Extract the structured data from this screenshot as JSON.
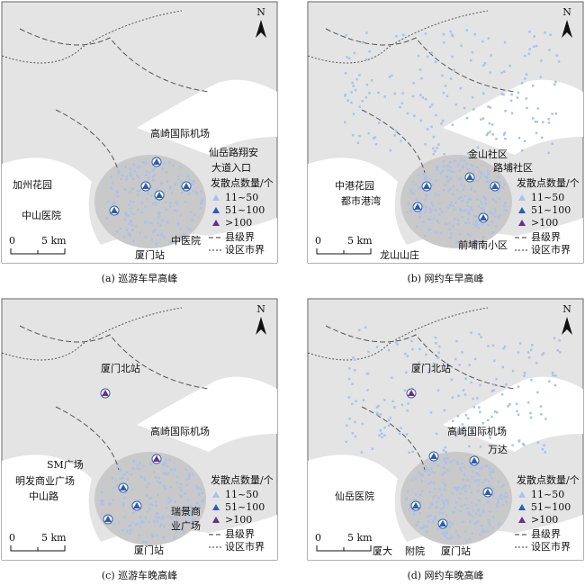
{
  "panels": [
    {
      "caption": "(a) 巡游车早高峰",
      "places": [
        "高崎国际机场",
        "仙岳路翔安",
        "大道入口",
        "加州花园",
        "中山医院",
        "中医院",
        "厦门站"
      ]
    },
    {
      "caption": "(b) 网约车早高峰",
      "places": [
        "金山社区",
        "路埔社区",
        "中港花园",
        "都市港湾",
        "前埔南小区",
        "龙山山庄"
      ]
    },
    {
      "caption": "(c) 巡游车晚高峰",
      "places": [
        "厦门北站",
        "高崎国际机场",
        "SM广场",
        "明发商业广场",
        "中山路",
        "瑞景商",
        "业广场",
        "厦门站"
      ]
    },
    {
      "caption": "(d) 网约车晚高峰",
      "places": [
        "厦门北站",
        "高崎国际机场",
        "万达",
        "仙岳医院",
        "厦大",
        "附院",
        "厦门站"
      ]
    }
  ],
  "legend": {
    "title": "发散点数量/个",
    "items": [
      "11~50",
      "51~100",
      ">100",
      "县级界",
      "设区市界"
    ]
  },
  "scale": {
    "zero": "0",
    "distance": "5 km"
  },
  "north": "N"
}
